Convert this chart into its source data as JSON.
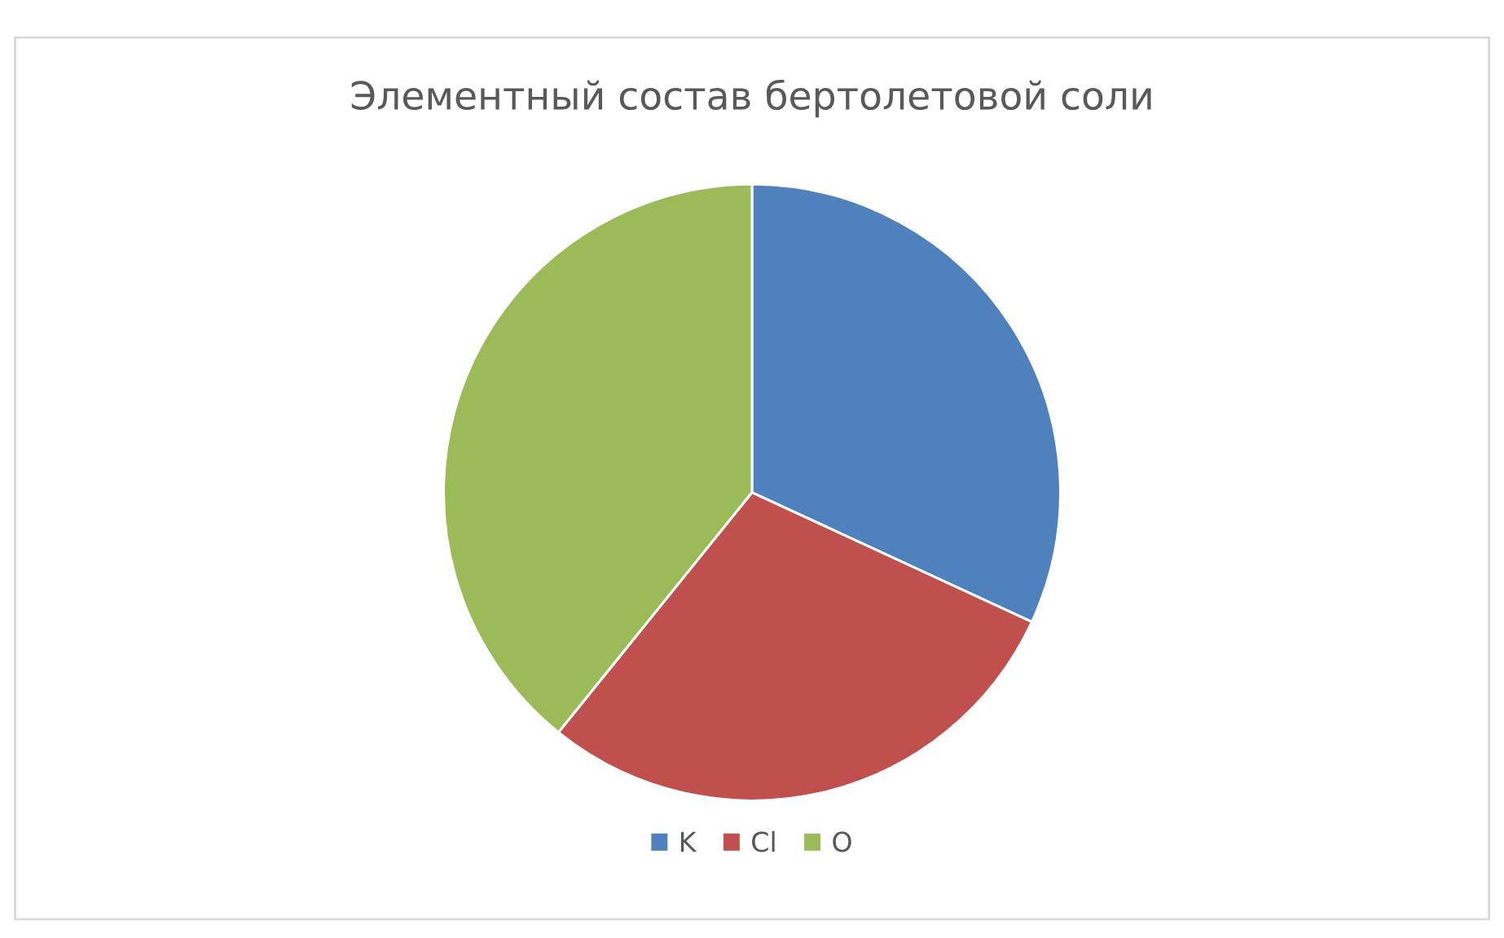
{
  "chart_data": {
    "type": "pie",
    "title": "Элементный состав бертолетовой соли",
    "categories": [
      "K",
      "Cl",
      "O"
    ],
    "values": [
      31.9,
      28.9,
      39.2
    ],
    "colors": [
      "#4f81bd",
      "#c0504d",
      "#9bbb59"
    ],
    "legend": "bottom"
  }
}
